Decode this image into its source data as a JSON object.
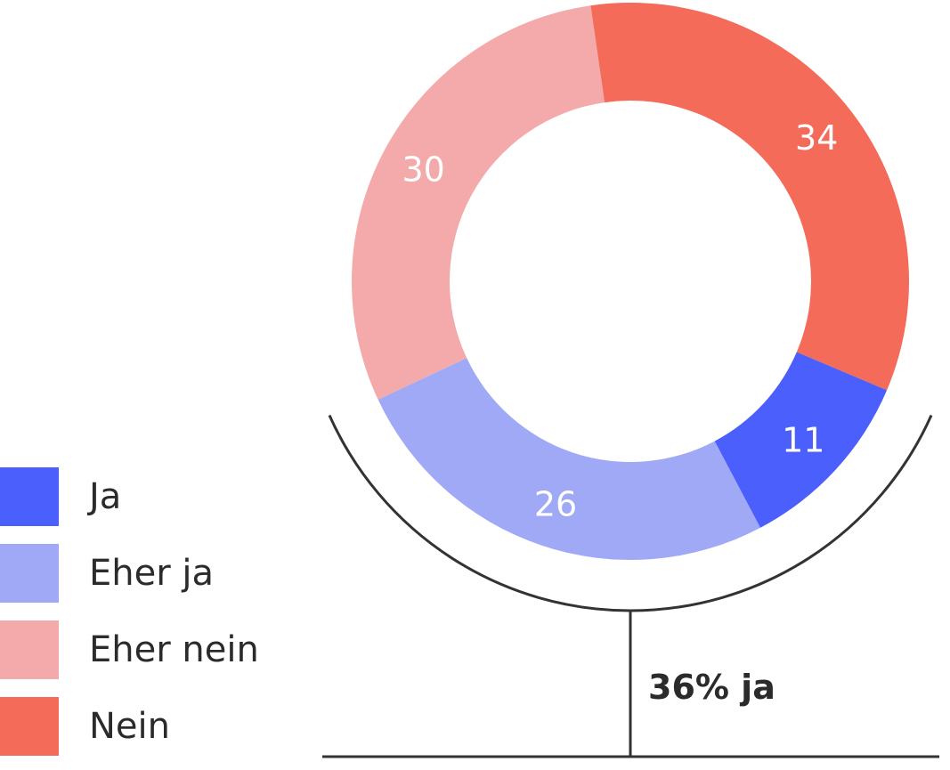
{
  "chart_data": {
    "type": "pie",
    "style": "donut",
    "categories": [
      "Ja",
      "Eher ja",
      "Eher nein",
      "Nein"
    ],
    "values": [
      11,
      26,
      30,
      34
    ],
    "colors": [
      "#4a5ffb",
      "#a0a9f5",
      "#f4aaaa",
      "#f46b5a"
    ],
    "legend": {
      "placement": "bottom-left",
      "entries": [
        "Ja",
        "Eher ja",
        "Eher nein",
        "Nein"
      ]
    },
    "annotation": {
      "text": "36% ja",
      "groups": [
        "Ja",
        "Eher ja"
      ]
    }
  }
}
